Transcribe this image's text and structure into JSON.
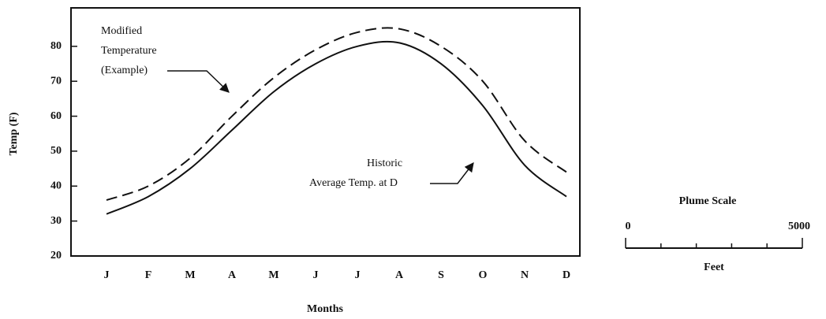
{
  "chart_data": {
    "type": "line",
    "ylabel": "Temp (F)",
    "xlabel": "Months",
    "categories": [
      "J",
      "F",
      "M",
      "A",
      "M",
      "J",
      "J",
      "A",
      "S",
      "O",
      "N",
      "D"
    ],
    "series": [
      {
        "color": "#111111",
        "style": "dashed",
        "values": [
          36,
          40,
          48,
          60,
          71,
          79,
          84,
          85,
          80,
          70,
          53,
          44
        ]
      },
      {
        "color": "#111111",
        "style": "solid",
        "values": [
          32,
          37,
          45,
          56,
          67,
          75,
          80,
          81,
          75,
          63,
          46,
          37
        ]
      }
    ],
    "ylim": [
      20,
      91
    ],
    "yticks": [
      20,
      30,
      40,
      50,
      60,
      70,
      80
    ],
    "grid": false,
    "annotations": [
      {
        "lines": [
          "Modified",
          "Temperature",
          "(Example)"
        ]
      },
      {
        "lines": [
          "Historic",
          "Average Temp. at D"
        ]
      }
    ]
  },
  "plume_scale": {
    "title": "Plume Scale",
    "xlabel": "Feet",
    "xlim": [
      0,
      5000
    ],
    "xticks": [
      0,
      1000,
      2000,
      3000,
      4000,
      5000
    ]
  }
}
